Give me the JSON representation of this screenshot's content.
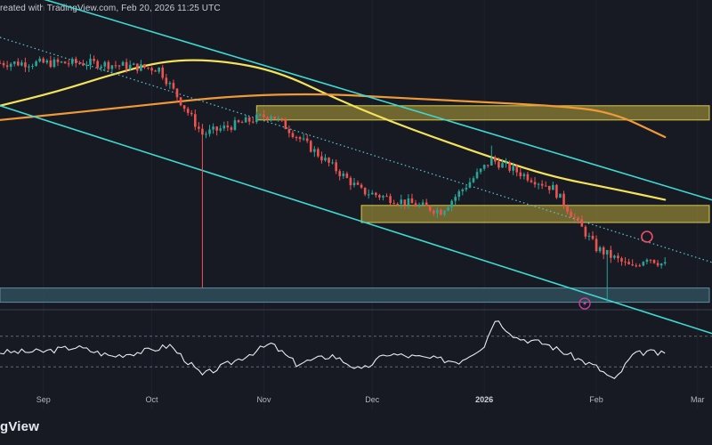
{
  "caption": "reated with TradingView.com, Feb 20, 2026 11:25 UTC",
  "brand": "gView",
  "colors": {
    "background": "#171a23",
    "candle_up": "#26a69a",
    "candle_down": "#ef5350",
    "channel": "#3fd8d0",
    "zone_fill": "#b8a83a",
    "ma_short": "#f3e25a",
    "ma_long": "#f09a37",
    "dotted_trend": "#59c7d2",
    "rsi_line": "#e8eaef",
    "marker_circle": "#ef4f67",
    "bolt_icon": "#d53fa3"
  },
  "icons": {
    "bolt_icon": "lightning-bolt-in-circle",
    "highlight": "red-circle-highlight"
  },
  "chart_data": [
    {
      "type": "candlestick",
      "x_axis": {
        "unit": "date",
        "range": [
          "2025-08-20",
          "2026-03-05"
        ],
        "ticks": [
          {
            "label": "Sep",
            "date": "2025-09-01",
            "bold": false
          },
          {
            "label": "Oct",
            "date": "2025-10-01",
            "bold": false
          },
          {
            "label": "Nov",
            "date": "2025-11-01",
            "bold": false
          },
          {
            "label": "Dec",
            "date": "2025-12-01",
            "bold": false
          },
          {
            "label": "2026",
            "date": "2026-01-01",
            "bold": true
          },
          {
            "label": "Feb",
            "date": "2026-02-01",
            "bold": false
          },
          {
            "label": "Mar",
            "date": "2026-03-01",
            "bold": false
          }
        ]
      },
      "price_axis": {
        "visible": false,
        "range": [
          0,
          100
        ]
      },
      "key_points": [
        {
          "date": "2025-09-14",
          "close": 81
        },
        {
          "date": "2025-10-03",
          "close": 79
        },
        {
          "date": "2025-10-15",
          "close": 56
        },
        {
          "date": "2025-10-15",
          "low": 2,
          "note": "long wick"
        },
        {
          "date": "2025-11-03",
          "close": 63
        },
        {
          "date": "2025-11-28",
          "close": 36
        },
        {
          "date": "2025-12-20",
          "close": 29
        },
        {
          "date": "2026-01-03",
          "close": 47
        },
        {
          "date": "2026-01-03",
          "high": 52
        },
        {
          "date": "2026-01-20",
          "close": 37
        },
        {
          "date": "2026-02-01",
          "close": 16
        },
        {
          "date": "2026-02-04",
          "low": -3
        },
        {
          "date": "2026-02-11",
          "close": 9
        },
        {
          "date": "2026-02-15",
          "close": 13
        },
        {
          "date": "2026-02-20",
          "close": 10
        }
      ],
      "zones": [
        {
          "name": "upper-resistance",
          "from": "2025-10-30",
          "to": "2026-03-20",
          "low": 61,
          "high": 66
        },
        {
          "name": "middle-resistance",
          "from": "2025-11-28",
          "to": "2026-03-20",
          "low": 25,
          "high": 31
        },
        {
          "name": "lower-support",
          "from": "2025-08-20",
          "to": "2026-03-20",
          "low": -3,
          "high": 2
        }
      ],
      "channel_lines": [
        {
          "name": "channel-upper",
          "points": [
            [
              "2025-08-20",
              108
            ],
            [
              "2026-03-10",
              31
            ]
          ]
        },
        {
          "name": "channel-lower",
          "points": [
            [
              "2025-08-20",
              66
            ],
            [
              "2026-03-10",
              -16
            ]
          ]
        }
      ],
      "dotted_trendline": {
        "points": [
          [
            "2025-08-20",
            90
          ],
          [
            "2026-03-10",
            9
          ]
        ]
      },
      "moving_averages": [
        {
          "name": "ma-short",
          "points": [
            [
              "2025-08-20",
              66
            ],
            [
              "2025-09-05",
              71
            ],
            [
              "2025-09-20",
              77
            ],
            [
              "2025-10-05",
              82
            ],
            [
              "2025-10-20",
              82
            ],
            [
              "2025-11-05",
              78
            ],
            [
              "2025-11-20",
              69
            ],
            [
              "2025-12-05",
              61
            ],
            [
              "2025-12-20",
              54
            ],
            [
              "2026-01-05",
              47
            ],
            [
              "2026-01-20",
              41
            ],
            [
              "2026-02-05",
              37
            ],
            [
              "2026-02-20",
              33
            ]
          ]
        },
        {
          "name": "ma-long",
          "points": [
            [
              "2025-08-20",
              61
            ],
            [
              "2025-09-05",
              63
            ],
            [
              "2025-09-20",
              65
            ],
            [
              "2025-10-05",
              67
            ],
            [
              "2025-10-20",
              69
            ],
            [
              "2025-11-05",
              70
            ],
            [
              "2025-11-20",
              70
            ],
            [
              "2025-12-05",
              69
            ],
            [
              "2025-12-20",
              68
            ],
            [
              "2026-01-05",
              67
            ],
            [
              "2026-01-20",
              66
            ],
            [
              "2026-02-05",
              64
            ],
            [
              "2026-02-20",
              55
            ]
          ]
        }
      ],
      "highlight": {
        "date": "2026-02-15",
        "value": 20
      }
    },
    {
      "type": "line",
      "name": "oscillator",
      "y_range": [
        0,
        100
      ],
      "guides": [
        70,
        30
      ],
      "points": [
        [
          "2025-08-20",
          49
        ],
        [
          "2025-09-01",
          50
        ],
        [
          "2025-09-10",
          56
        ],
        [
          "2025-09-20",
          44
        ],
        [
          "2025-10-01",
          52
        ],
        [
          "2025-10-06",
          58
        ],
        [
          "2025-10-15",
          19
        ],
        [
          "2025-10-25",
          40
        ],
        [
          "2025-11-03",
          60
        ],
        [
          "2025-11-10",
          34
        ],
        [
          "2025-11-20",
          45
        ],
        [
          "2025-11-28",
          25
        ],
        [
          "2025-12-05",
          47
        ],
        [
          "2025-12-15",
          42
        ],
        [
          "2025-12-25",
          37
        ],
        [
          "2026-01-01",
          58
        ],
        [
          "2026-01-04",
          93
        ],
        [
          "2026-01-10",
          68
        ],
        [
          "2026-01-18",
          60
        ],
        [
          "2026-01-28",
          38
        ],
        [
          "2026-02-01",
          30
        ],
        [
          "2026-02-06",
          12
        ],
        [
          "2026-02-11",
          45
        ],
        [
          "2026-02-15",
          50
        ],
        [
          "2026-02-20",
          46
        ]
      ]
    }
  ]
}
